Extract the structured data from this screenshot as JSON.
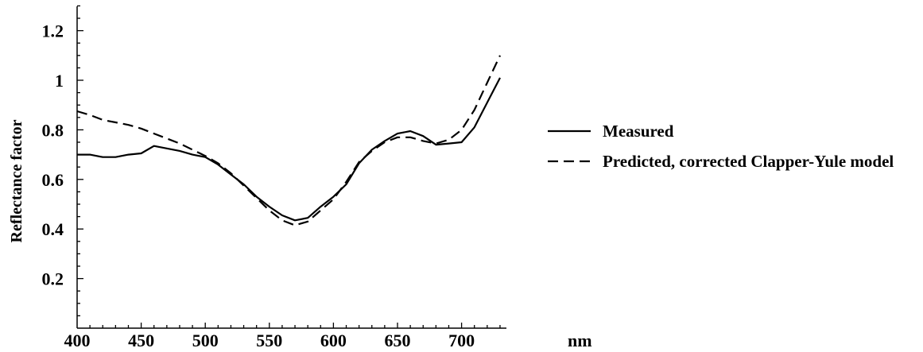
{
  "chart_data": {
    "type": "line",
    "title": "",
    "xlabel": "",
    "ylabel": "Reflectance factor",
    "x_unit": "nm",
    "xlim": [
      400,
      735
    ],
    "ylim": [
      0,
      1.3
    ],
    "x_ticks": [
      400,
      450,
      500,
      550,
      600,
      650,
      700
    ],
    "x_tick_labels": [
      "400",
      "450",
      "500",
      "550",
      "600",
      "650",
      "700"
    ],
    "y_ticks": [
      0.2,
      0.4,
      0.6,
      0.8,
      1.0,
      1.2
    ],
    "y_tick_labels": [
      "0.2",
      "0.4",
      "0.6",
      "0.8",
      "1",
      "1.2"
    ],
    "grid": false,
    "legend_position": "right",
    "series": [
      {
        "name": "Measured",
        "style": "solid",
        "color": "#000000",
        "x": [
          400,
          410,
          420,
          430,
          440,
          450,
          460,
          470,
          480,
          490,
          500,
          510,
          520,
          530,
          540,
          550,
          560,
          570,
          580,
          590,
          600,
          610,
          620,
          630,
          640,
          650,
          660,
          670,
          680,
          690,
          700,
          710,
          720,
          730
        ],
        "y": [
          0.7,
          0.7,
          0.69,
          0.69,
          0.7,
          0.705,
          0.735,
          0.725,
          0.715,
          0.7,
          0.69,
          0.66,
          0.62,
          0.58,
          0.53,
          0.49,
          0.455,
          0.435,
          0.445,
          0.49,
          0.53,
          0.58,
          0.665,
          0.72,
          0.755,
          0.785,
          0.795,
          0.775,
          0.74,
          0.745,
          0.75,
          0.81,
          0.91,
          1.01
        ]
      },
      {
        "name": "Predicted, corrected Clapper-Yule model",
        "style": "dashed",
        "color": "#000000",
        "x": [
          400,
          410,
          420,
          430,
          440,
          450,
          460,
          470,
          480,
          490,
          500,
          510,
          520,
          530,
          540,
          550,
          560,
          570,
          580,
          590,
          600,
          610,
          620,
          630,
          640,
          650,
          660,
          670,
          680,
          690,
          700,
          710,
          720,
          730
        ],
        "y": [
          0.875,
          0.86,
          0.84,
          0.83,
          0.82,
          0.805,
          0.785,
          0.765,
          0.745,
          0.72,
          0.695,
          0.665,
          0.625,
          0.575,
          0.525,
          0.475,
          0.435,
          0.415,
          0.43,
          0.475,
          0.52,
          0.59,
          0.67,
          0.715,
          0.75,
          0.77,
          0.77,
          0.755,
          0.745,
          0.76,
          0.8,
          0.88,
          0.99,
          1.1
        ]
      }
    ]
  }
}
